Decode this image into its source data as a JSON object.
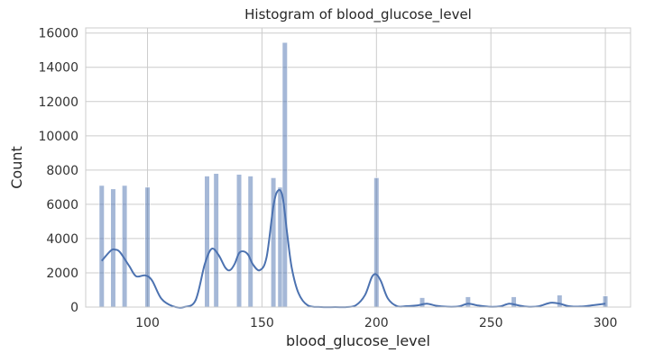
{
  "chart_data": {
    "type": "bar",
    "title": "Histogram of blood_glucose_level",
    "xlabel": "blood_glucose_level",
    "ylabel": "Count",
    "xlim": [
      73,
      311
    ],
    "ylim": [
      0,
      16300
    ],
    "xticks": [
      100,
      150,
      200,
      250,
      300
    ],
    "yticks": [
      0,
      2000,
      4000,
      6000,
      8000,
      10000,
      12000,
      14000,
      16000
    ],
    "grid": true,
    "bar_color": "#4c72b0",
    "bar_opacity": 0.5,
    "kde_color": "#4c72b0",
    "bin_width": 2.2,
    "bars": [
      {
        "x": 80,
        "count": 7100
      },
      {
        "x": 85,
        "count": 6900
      },
      {
        "x": 90,
        "count": 7100
      },
      {
        "x": 100,
        "count": 7000
      },
      {
        "x": 126,
        "count": 7650
      },
      {
        "x": 130,
        "count": 7800
      },
      {
        "x": 140,
        "count": 7750
      },
      {
        "x": 145,
        "count": 7650
      },
      {
        "x": 155,
        "count": 7550
      },
      {
        "x": 158,
        "count": 7000
      },
      {
        "x": 160,
        "count": 15450
      },
      {
        "x": 200,
        "count": 7550
      },
      {
        "x": 220,
        "count": 550
      },
      {
        "x": 240,
        "count": 600
      },
      {
        "x": 260,
        "count": 600
      },
      {
        "x": 280,
        "count": 700
      },
      {
        "x": 300,
        "count": 650
      }
    ],
    "kde": {
      "x": [
        80,
        84,
        86,
        88,
        92,
        95,
        99,
        102,
        106,
        111,
        116,
        121,
        125,
        128,
        131,
        134,
        136,
        138,
        140,
        142,
        144,
        146,
        149,
        152,
        155,
        157,
        159,
        161,
        163,
        166,
        170,
        176,
        182,
        187,
        191,
        195,
        198,
        200,
        202,
        205,
        209,
        213,
        218,
        222,
        226,
        231,
        236,
        240,
        244,
        249,
        254,
        258,
        262,
        266,
        271,
        276,
        280,
        284,
        289,
        294,
        300
      ],
      "y": [
        2700,
        3300,
        3350,
        3200,
        2400,
        1800,
        1850,
        1550,
        500,
        50,
        0,
        400,
        2500,
        3400,
        3050,
        2300,
        2150,
        2500,
        3150,
        3250,
        3050,
        2500,
        2150,
        2900,
        5900,
        6800,
        6450,
        4300,
        2300,
        800,
        100,
        0,
        0,
        0,
        100,
        700,
        1750,
        1900,
        1500,
        500,
        50,
        50,
        100,
        200,
        80,
        20,
        40,
        200,
        100,
        20,
        40,
        200,
        100,
        20,
        50,
        250,
        200,
        50,
        30,
        100,
        200
      ]
    }
  }
}
